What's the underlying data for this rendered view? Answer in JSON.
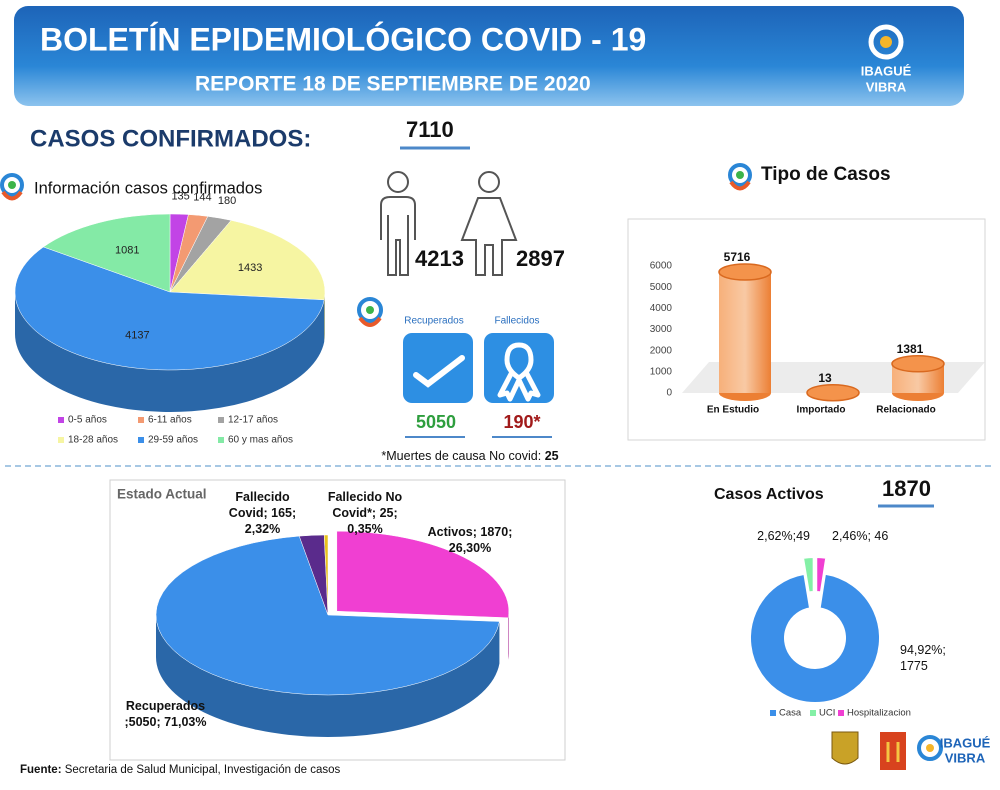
{
  "header": {
    "title": "BOLETÍN EPIDEMIOLÓGICO COVID - 19",
    "subtitle": "REPORTE 18 DE SEPTIEMBRE DE 2020",
    "logo": [
      "IBAGUÉ",
      "VIBRA"
    ]
  },
  "confirmed": {
    "heading": "CASOS CONFIRMADOS:",
    "total": 7110,
    "men": 4213,
    "women": 2897
  },
  "outcomes": {
    "recovered_label": "Recuperados",
    "deceased_label": "Fallecidos",
    "recovered": 5050,
    "deceased": "190*",
    "note": "*Muertes de causa No covid:",
    "note_value": 25
  },
  "chart_data": [
    {
      "type": "pie",
      "title": "Información casos confirmados",
      "categories": [
        "0-5 años",
        "6-11 años",
        "12-17 años",
        "18-28 años",
        "29-59 años",
        "60 y mas años"
      ],
      "values": [
        135,
        144,
        180,
        1433,
        4137,
        1081
      ],
      "colors": [
        "#c244e6",
        "#f39a72",
        "#a3a3a3",
        "#f6f5a2",
        "#3b8fe9",
        "#84eaa6"
      ],
      "legend": "bottom"
    },
    {
      "type": "bar",
      "title": "Tipo de Casos",
      "categories": [
        "En Estudio",
        "Importado",
        "Relacionado"
      ],
      "values": [
        5716,
        13,
        1381
      ],
      "color": "#f4934b",
      "ylim": [
        0,
        6000
      ],
      "yticks": [
        0,
        1000,
        2000,
        3000,
        4000,
        5000,
        6000
      ],
      "grid": false
    },
    {
      "type": "pie",
      "title": "Estado Actual",
      "values": [
        1870,
        5050,
        165,
        25
      ],
      "value_labels": [
        "Activos; 1870; 26,30%",
        "Recuperados ;5050; 71,03%",
        "Fallecido Covid; 165; 2,32%",
        "Fallecido No Covid*; 25; 0,35%"
      ],
      "colors": [
        "#f03fd2",
        "#3b8fe9",
        "#5a2b8c",
        "#e8c21e"
      ]
    },
    {
      "type": "donut",
      "title": "Casos Activos",
      "total": 1870,
      "categories": [
        "Casa",
        "UCI",
        "Hospitalizacion"
      ],
      "values": [
        1775,
        49,
        46
      ],
      "value_labels": [
        "94,92%; 1775",
        "2,62%;49",
        "2,46%; 46"
      ],
      "colors": [
        "#3b8fe9",
        "#84f0a6",
        "#f03fd2"
      ],
      "legend": "bottom"
    }
  ],
  "footer": {
    "source_label": "Fuente:",
    "source": "Secretaria de Salud Municipal, Investigación de casos",
    "logo": [
      "IBAGUÉ",
      "VIBRA"
    ]
  }
}
